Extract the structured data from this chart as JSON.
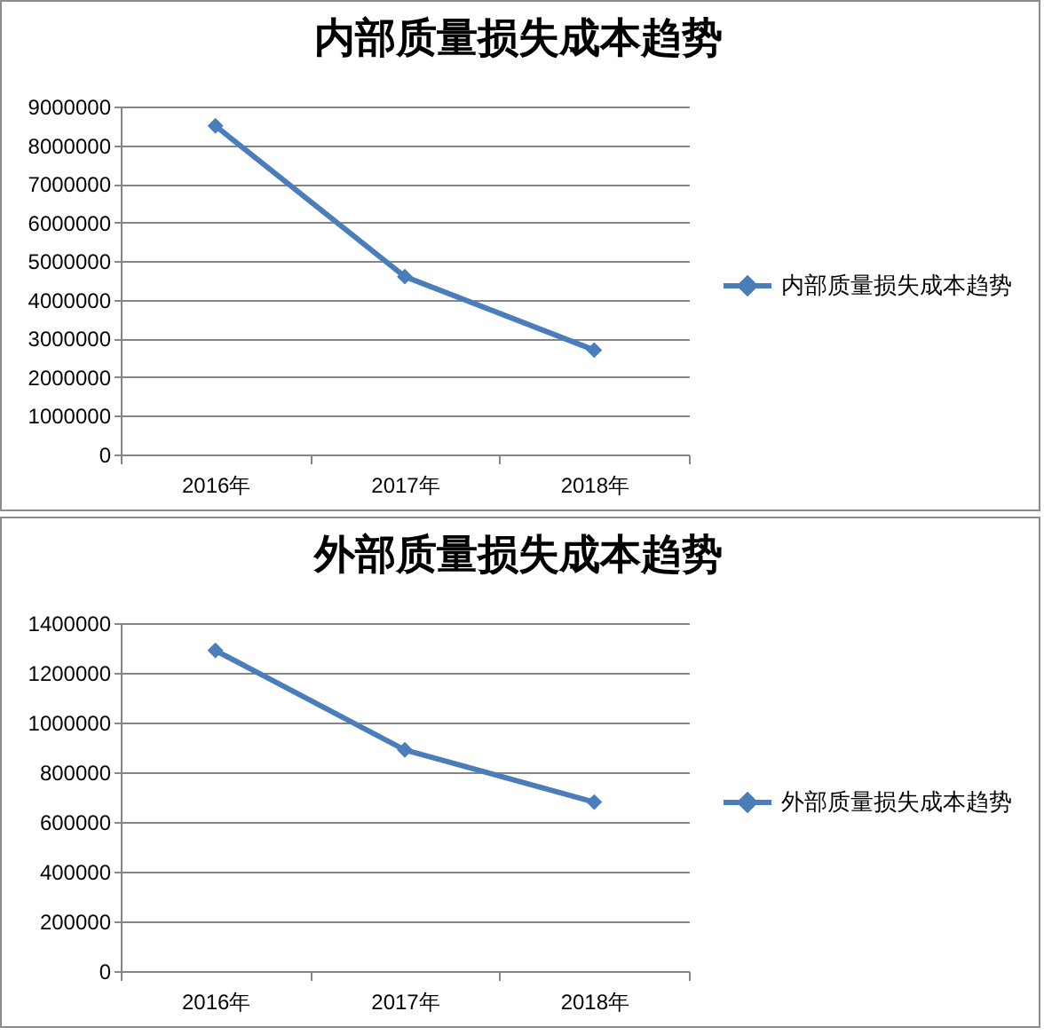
{
  "chart_data": [
    {
      "type": "line",
      "title": "内部质量损失成本趋势",
      "categories": [
        "2016年",
        "2017年",
        "2018年"
      ],
      "series": [
        {
          "name": "内部质量损失成本趋势",
          "color": "#4a7ebb",
          "values": [
            8500000,
            4600000,
            2700000
          ]
        }
      ],
      "ylim": [
        0,
        9000000
      ],
      "yticks": [
        0,
        1000000,
        2000000,
        3000000,
        4000000,
        5000000,
        6000000,
        7000000,
        8000000,
        9000000
      ],
      "grid": "y",
      "legend": "right",
      "marker": "diamond",
      "line_style": "solid"
    },
    {
      "type": "line",
      "title": "外部质量损失成本趋势",
      "categories": [
        "2016年",
        "2017年",
        "2018年"
      ],
      "series": [
        {
          "name": "外部质量损失成本趋势",
          "color": "#4a7ebb",
          "values": [
            1290000,
            890000,
            680000
          ]
        }
      ],
      "ylim": [
        0,
        1400000
      ],
      "yticks": [
        0,
        200000,
        400000,
        600000,
        800000,
        1000000,
        1200000,
        1400000
      ],
      "grid": "y",
      "legend": "right",
      "marker": "diamond",
      "line_style": "solid"
    }
  ]
}
